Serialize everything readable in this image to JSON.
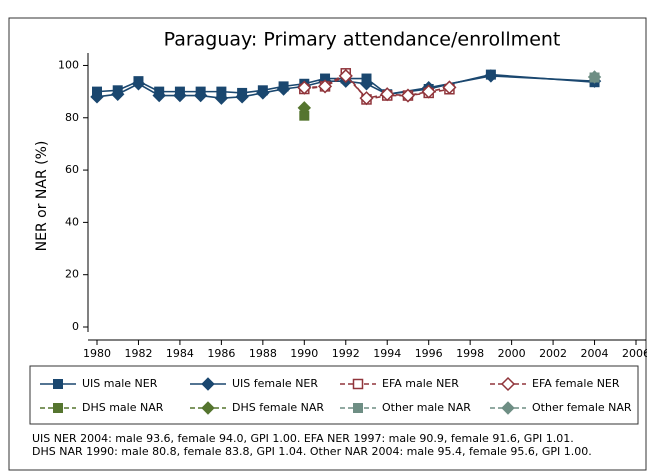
{
  "chart_data": {
    "type": "line",
    "title": "Paraguay: Primary attendance/enrollment",
    "y_label": "NER or NAR (%)",
    "xlim": [
      1980,
      2006
    ],
    "xticks": [
      1980,
      1982,
      1984,
      1986,
      1988,
      1990,
      1992,
      1994,
      1996,
      1998,
      2000,
      2002,
      2004,
      2006
    ],
    "ylim": [
      0,
      104
    ],
    "yticks": [
      0,
      20,
      40,
      60,
      80,
      100
    ],
    "series": [
      {
        "name": "UIS male NER",
        "color": "#1a476f",
        "marker": "square",
        "fill": "filled",
        "dashed": false,
        "x": [
          1980,
          1981,
          1982,
          1983,
          1984,
          1985,
          1986,
          1987,
          1988,
          1989,
          1990,
          1991,
          1992,
          1993,
          1994,
          1996,
          1999,
          2004
        ],
        "values": [
          90,
          90.5,
          94,
          90,
          90,
          90,
          90,
          89.5,
          90.5,
          92,
          93,
          95,
          95,
          95,
          89,
          91,
          96.5,
          93.6
        ]
      },
      {
        "name": "UIS female NER",
        "color": "#1a476f",
        "marker": "diamond",
        "fill": "filled",
        "dashed": false,
        "x": [
          1980,
          1981,
          1982,
          1983,
          1984,
          1985,
          1986,
          1987,
          1988,
          1989,
          1990,
          1991,
          1992,
          1993,
          1994,
          1996,
          1999,
          2004
        ],
        "values": [
          88,
          89,
          93,
          88.5,
          88.5,
          88.5,
          87.5,
          88,
          89.5,
          91,
          92,
          94,
          94,
          93,
          89,
          91.5,
          96,
          94.0
        ]
      },
      {
        "name": "EFA male NER",
        "color": "#90353b",
        "marker": "square",
        "fill": "hollow",
        "dashed": true,
        "x": [
          1990,
          1991,
          1992,
          1993,
          1994,
          1995,
          1996,
          1997
        ],
        "values": [
          91,
          92,
          97,
          87,
          88.5,
          88.5,
          89.5,
          90.9
        ]
      },
      {
        "name": "EFA female NER",
        "color": "#90353b",
        "marker": "diamond",
        "fill": "hollow",
        "dashed": true,
        "x": [
          1990,
          1991,
          1992,
          1993,
          1994,
          1995,
          1996,
          1997
        ],
        "values": [
          91.5,
          92,
          96,
          87.5,
          89,
          88.5,
          90,
          91.6
        ]
      },
      {
        "name": "DHS male NAR",
        "color": "#55752f",
        "marker": "square",
        "fill": "filled",
        "dashed": true,
        "x": [
          1990
        ],
        "values": [
          80.8
        ]
      },
      {
        "name": "DHS female NAR",
        "color": "#55752f",
        "marker": "diamond",
        "fill": "filled",
        "dashed": true,
        "x": [
          1990
        ],
        "values": [
          83.8
        ]
      },
      {
        "name": "Other male NAR",
        "color": "#6e8e84",
        "marker": "square",
        "fill": "filled",
        "dashed": true,
        "x": [
          2004
        ],
        "values": [
          95.4
        ]
      },
      {
        "name": "Other female NAR",
        "color": "#6e8e84",
        "marker": "diamond",
        "fill": "filled",
        "dashed": true,
        "x": [
          2004
        ],
        "values": [
          95.6
        ]
      }
    ],
    "notes": [
      "UIS NER 2004: male 93.6, female 94.0, GPI 1.00. EFA NER 1997: male 90.9, female 91.6, GPI 1.01.",
      "DHS NAR 1990: male 80.8, female 83.8, GPI 1.04. Other NAR 2004: male 95.4, female 95.6, GPI 1.00."
    ]
  }
}
